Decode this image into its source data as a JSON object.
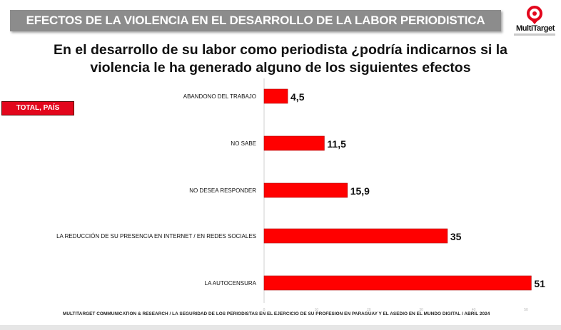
{
  "header": {
    "banner_title": "EFECTOS DE LA VIOLENCIA EN EL DESARROLLO DE LA LABOR PERIODISTICA",
    "logo_text": "MultiTarget",
    "question_line1": "En el desarrollo de su labor como periodista ¿podría indicarnos si la",
    "question_line2": "violencia le ha generado alguno de los siguientes efectos"
  },
  "badge": {
    "label": "TOTAL, PAÍS"
  },
  "footer": {
    "source": "MULTITARGET COMMUNICATION & RESEARCH / LA SEGURIDAD DE LOS PERIODISTAS EN EL EJERCICIO DE SU PROFESION  EN PARAGUAY  Y EL ASEDIO EN EL MUNDO DIGITAL  / ABRIL  2024"
  },
  "colors": {
    "bar": "#ff0000",
    "badge": "#e3061c",
    "banner": "#8c8c8c",
    "logo": "#e3061c"
  },
  "chart_data": {
    "type": "bar",
    "orientation": "horizontal",
    "categories": [
      "ABANDONO DEL TRABAJO",
      "NO SABE",
      "NO DESEA RESPONDER",
      "LA REDUCCIÓN DE SU PRESENCIA EN INTERNET / EN REDES SOCIALES",
      "LA AUTOCENSURA"
    ],
    "values": [
      4.5,
      11.5,
      15.9,
      35,
      51
    ],
    "value_labels": [
      "4,5",
      "11,5",
      "15,9",
      "35",
      "51"
    ],
    "xlim": [
      0,
      50
    ],
    "xticks": [
      "0",
      "10",
      "20",
      "30",
      "40",
      "50"
    ],
    "grid": false,
    "legend": "none"
  }
}
